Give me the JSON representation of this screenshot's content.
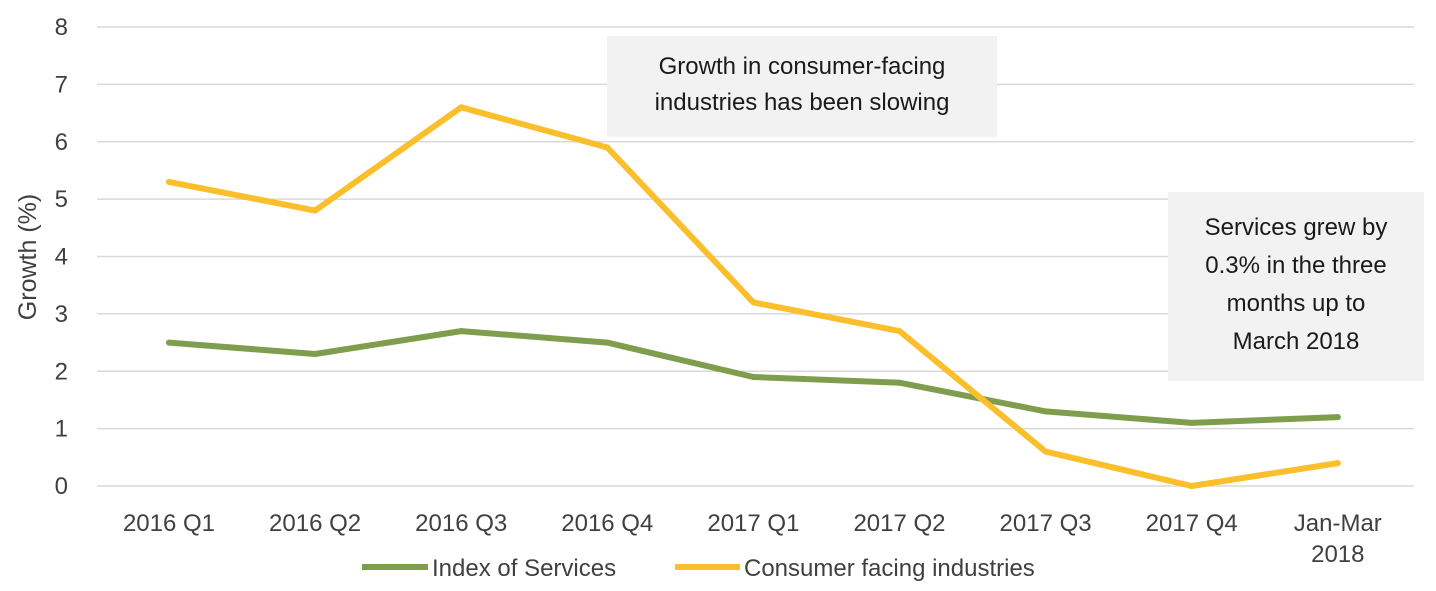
{
  "chart_data": {
    "type": "line",
    "title": "",
    "xlabel": "",
    "ylabel": "Growth (%)",
    "ylim": [
      0,
      8
    ],
    "yticks": [
      0,
      1,
      2,
      3,
      4,
      5,
      6,
      7,
      8
    ],
    "grid": true,
    "legend_position": "bottom",
    "categories": [
      [
        "2016 Q1"
      ],
      [
        "2016 Q2"
      ],
      [
        "2016 Q3"
      ],
      [
        "2016 Q4"
      ],
      [
        "2017 Q1"
      ],
      [
        "2017 Q2"
      ],
      [
        "2017 Q3"
      ],
      [
        "2017 Q4"
      ],
      [
        "Jan-Mar",
        "2018"
      ]
    ],
    "series": [
      {
        "name": "Index of Services",
        "color": "#7e9e4d",
        "values": [
          2.5,
          2.3,
          2.7,
          2.5,
          1.9,
          1.8,
          1.3,
          1.1,
          1.2
        ]
      },
      {
        "name": "Consumer facing industries",
        "color": "#fbbf2c",
        "values": [
          5.3,
          4.8,
          6.6,
          5.9,
          3.2,
          2.7,
          0.6,
          0.0,
          0.4
        ]
      }
    ],
    "annotations": [
      {
        "id": "slowing",
        "lines": [
          "Growth in consumer-facing",
          "industries has been slowing"
        ]
      },
      {
        "id": "services-growth",
        "lines": [
          "Services grew by",
          "0.3% in the three",
          "months up to",
          "March 2018"
        ]
      }
    ]
  }
}
